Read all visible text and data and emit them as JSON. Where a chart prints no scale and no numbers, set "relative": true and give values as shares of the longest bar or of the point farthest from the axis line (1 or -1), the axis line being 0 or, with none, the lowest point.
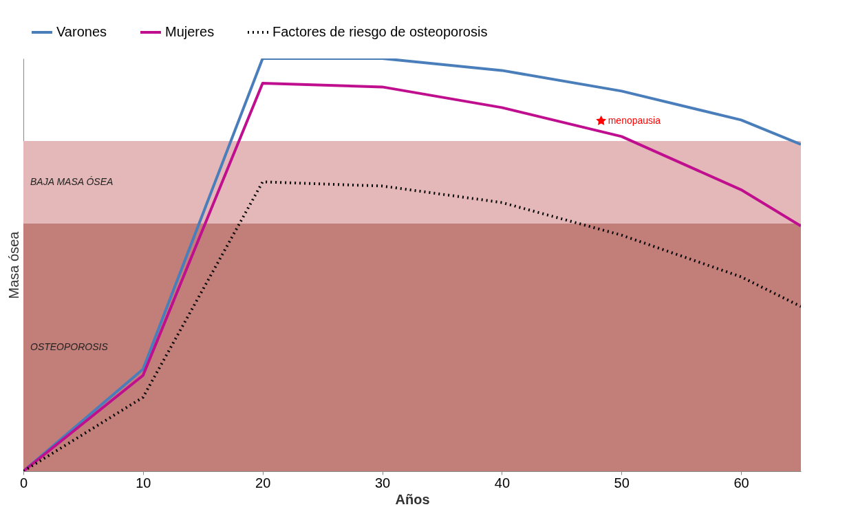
{
  "chart_data": {
    "type": "line",
    "xlabel": "Años",
    "ylabel": "Masa ósea",
    "relative": true,
    "x": [
      0,
      10,
      20,
      30,
      40,
      50,
      60,
      65
    ],
    "xlim": [
      0,
      65
    ],
    "xticks": [
      0,
      10,
      20,
      30,
      40,
      50,
      60
    ],
    "legend": "top",
    "series": [
      {
        "name": "Varones",
        "color": "#4a7ebb",
        "values": [
          0,
          0.247,
          1.0,
          1.0,
          0.971,
          0.921,
          0.851,
          0.792
        ]
      },
      {
        "name": "Mujeres",
        "color": "#bf0f8f",
        "values": [
          0,
          0.232,
          0.94,
          0.931,
          0.881,
          0.811,
          0.682,
          0.594
        ]
      },
      {
        "name": "Factores de riesgo de osteoporosis",
        "color": "#000000",
        "line_style": "dotted",
        "values": [
          0,
          0.179,
          0.701,
          0.691,
          0.651,
          0.572,
          0.471,
          0.399
        ]
      }
    ],
    "bands": [
      {
        "axis": "y",
        "from": 0.6,
        "to": 0.8,
        "label": "BAJA MASA ÓSEA",
        "color": "#e4b8b8"
      },
      {
        "axis": "y",
        "from": 0,
        "to": 0.6,
        "label": "OSTEOPOROSIS",
        "color": "#c27e78"
      }
    ],
    "annotations": [
      {
        "text": "menopausia",
        "x": 48.3,
        "y": 0.849
      }
    ]
  }
}
